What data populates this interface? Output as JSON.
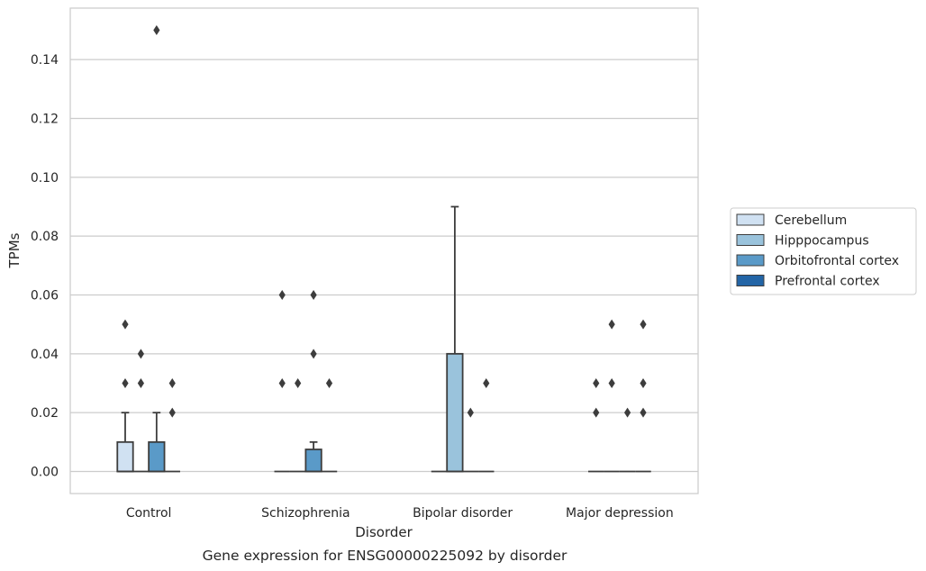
{
  "chart_data": {
    "type": "box",
    "title": "Gene expression for ENSG00000225092 by disorder",
    "xlabel": "Disorder",
    "ylabel": "TPMs",
    "ylim": [
      -0.0075,
      0.1575
    ],
    "yticks": [
      0.0,
      0.02,
      0.04,
      0.06,
      0.08,
      0.1,
      0.12,
      0.14
    ],
    "ytick_labels": [
      "0.00",
      "0.02",
      "0.04",
      "0.06",
      "0.08",
      "0.10",
      "0.12",
      "0.14"
    ],
    "grid": "horizontal",
    "legend_position": "right",
    "categories": [
      "Control",
      "Schizophrenia",
      "Bipolar disorder",
      "Major depression"
    ],
    "series": [
      {
        "name": "Cerebellum",
        "color": "#d0e1f2",
        "boxes": [
          {
            "q1": 0.0,
            "median": 0.0,
            "q3": 0.01,
            "whisker_low": 0.0,
            "whisker_high": 0.02,
            "outliers": [
              0.05,
              0.03
            ]
          },
          {
            "q1": 0.0,
            "median": 0.0,
            "q3": 0.0,
            "whisker_low": 0.0,
            "whisker_high": 0.0,
            "outliers": [
              0.06,
              0.03
            ]
          },
          {
            "q1": 0.0,
            "median": 0.0,
            "q3": 0.0,
            "whisker_low": 0.0,
            "whisker_high": 0.0,
            "outliers": []
          },
          {
            "q1": 0.0,
            "median": 0.0,
            "q3": 0.0,
            "whisker_low": 0.0,
            "whisker_high": 0.0,
            "outliers": [
              0.03,
              0.02
            ]
          }
        ]
      },
      {
        "name": "Hipppocampus",
        "color": "#9ac3dc",
        "boxes": [
          {
            "q1": 0.0,
            "median": 0.0,
            "q3": 0.0,
            "whisker_low": 0.0,
            "whisker_high": 0.0,
            "outliers": [
              0.04,
              0.03
            ]
          },
          {
            "q1": 0.0,
            "median": 0.0,
            "q3": 0.0,
            "whisker_low": 0.0,
            "whisker_high": 0.0,
            "outliers": [
              0.03
            ]
          },
          {
            "q1": 0.0,
            "median": 0.0,
            "q3": 0.04,
            "whisker_low": 0.0,
            "whisker_high": 0.09,
            "outliers": []
          },
          {
            "q1": 0.0,
            "median": 0.0,
            "q3": 0.0,
            "whisker_low": 0.0,
            "whisker_high": 0.0,
            "outliers": [
              0.05,
              0.03
            ]
          }
        ]
      },
      {
        "name": "Orbitofrontal cortex",
        "color": "#5a9ac8",
        "boxes": [
          {
            "q1": 0.0,
            "median": 0.0,
            "q3": 0.01,
            "whisker_low": 0.0,
            "whisker_high": 0.02,
            "outliers": [
              0.15
            ]
          },
          {
            "q1": 0.0,
            "median": 0.0,
            "q3": 0.0075,
            "whisker_low": 0.0,
            "whisker_high": 0.01,
            "outliers": [
              0.06,
              0.04
            ]
          },
          {
            "q1": 0.0,
            "median": 0.0,
            "q3": 0.0,
            "whisker_low": 0.0,
            "whisker_high": 0.0,
            "outliers": [
              0.02
            ]
          },
          {
            "q1": 0.0,
            "median": 0.0,
            "q3": 0.0,
            "whisker_low": 0.0,
            "whisker_high": 0.0,
            "outliers": [
              0.02
            ]
          }
        ]
      },
      {
        "name": "Prefrontal cortex",
        "color": "#2365a6",
        "boxes": [
          {
            "q1": 0.0,
            "median": 0.0,
            "q3": 0.0,
            "whisker_low": 0.0,
            "whisker_high": 0.0,
            "outliers": [
              0.03,
              0.02
            ]
          },
          {
            "q1": 0.0,
            "median": 0.0,
            "q3": 0.0,
            "whisker_low": 0.0,
            "whisker_high": 0.0,
            "outliers": [
              0.03
            ]
          },
          {
            "q1": 0.0,
            "median": 0.0,
            "q3": 0.0,
            "whisker_low": 0.0,
            "whisker_high": 0.0,
            "outliers": [
              0.03
            ]
          },
          {
            "q1": 0.0,
            "median": 0.0,
            "q3": 0.0,
            "whisker_low": 0.0,
            "whisker_high": 0.0,
            "outliers": [
              0.05,
              0.03,
              0.02
            ]
          }
        ]
      }
    ]
  }
}
